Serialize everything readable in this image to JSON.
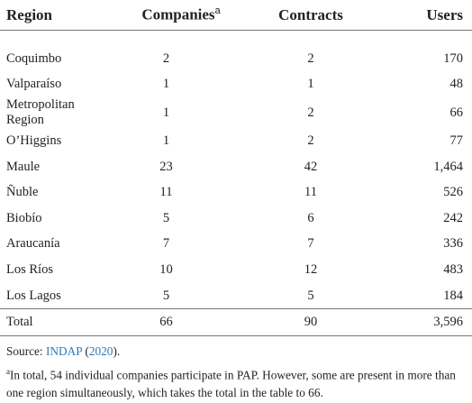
{
  "table": {
    "columns": [
      "Region",
      "Companies",
      "Contracts",
      "Users"
    ],
    "column_note": "a",
    "rows": [
      [
        "Coquimbo",
        "2",
        "2",
        "170"
      ],
      [
        "Valparaíso",
        "1",
        "1",
        "48"
      ],
      [
        "Metropolitan Region",
        "1",
        "2",
        "66"
      ],
      [
        "O’Higgins",
        "1",
        "2",
        "77"
      ],
      [
        "Maule",
        "23",
        "42",
        "1,464"
      ],
      [
        "Ñuble",
        "11",
        "11",
        "526"
      ],
      [
        "Biobío",
        "5",
        "6",
        "242"
      ],
      [
        "Araucanía",
        "7",
        "7",
        "336"
      ],
      [
        "Los Ríos",
        "10",
        "12",
        "483"
      ],
      [
        "Los Lagos",
        "5",
        "5",
        "184"
      ],
      [
        "Total",
        "66",
        "90",
        "3,596"
      ]
    ]
  },
  "source": [
    "Source: ",
    "INDAP",
    " (",
    "2020",
    ")."
  ],
  "footnote": {
    "marker": "a",
    "text": "In total, 54 individual companies participate in PAP. However, some are present in more than one region simultaneously, which takes the total in the table to 66."
  }
}
